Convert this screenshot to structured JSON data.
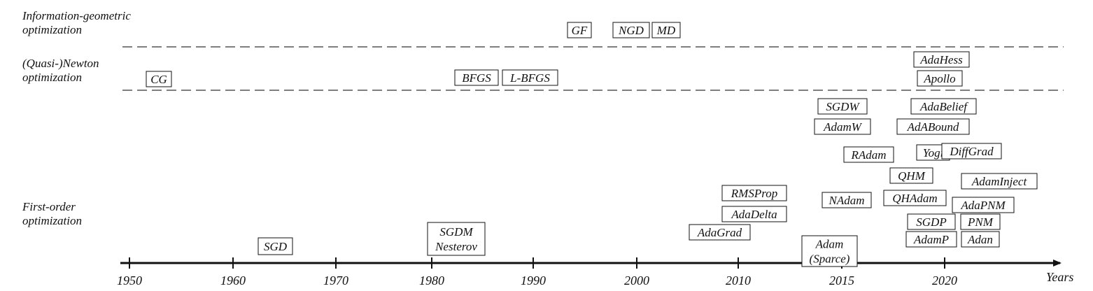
{
  "categories": [
    {
      "id": "info",
      "lines": [
        "Information-geometric",
        "optimization"
      ]
    },
    {
      "id": "newton",
      "lines": [
        "(Quasi-)Newton",
        "optimization"
      ]
    },
    {
      "id": "first",
      "lines": [
        "First-order",
        "optimization"
      ]
    }
  ],
  "axis": {
    "label": "Years",
    "ticks": [
      "1950",
      "1960",
      "1970",
      "1980",
      "1990",
      "2000",
      "2010",
      "2015",
      "2020"
    ]
  },
  "methods": [
    {
      "id": "gf",
      "lines": [
        "GF"
      ]
    },
    {
      "id": "ngd",
      "lines": [
        "NGD"
      ]
    },
    {
      "id": "md",
      "lines": [
        "MD"
      ]
    },
    {
      "id": "cg",
      "lines": [
        "CG"
      ]
    },
    {
      "id": "bfgs",
      "lines": [
        "BFGS"
      ]
    },
    {
      "id": "lbfgs",
      "lines": [
        "L-BFGS"
      ]
    },
    {
      "id": "adahess",
      "lines": [
        "AdaHess"
      ]
    },
    {
      "id": "apollo",
      "lines": [
        "Apollo"
      ]
    },
    {
      "id": "sgd",
      "lines": [
        "SGD"
      ]
    },
    {
      "id": "sgdm",
      "lines": [
        "SGDM",
        "Nesterov"
      ]
    },
    {
      "id": "adagrad",
      "lines": [
        "AdaGrad"
      ]
    },
    {
      "id": "rmsprop",
      "lines": [
        "RMSProp"
      ]
    },
    {
      "id": "adadelta",
      "lines": [
        "AdaDelta"
      ]
    },
    {
      "id": "sgdw",
      "lines": [
        "SGDW"
      ]
    },
    {
      "id": "adamw",
      "lines": [
        "AdamW"
      ]
    },
    {
      "id": "radam",
      "lines": [
        "RAdam"
      ]
    },
    {
      "id": "nadam",
      "lines": [
        "NAdam"
      ]
    },
    {
      "id": "adam",
      "lines": [
        "Adam",
        "(Sparce)"
      ]
    },
    {
      "id": "adabelief",
      "lines": [
        "AdaBelief"
      ]
    },
    {
      "id": "adabound",
      "lines": [
        "AdABound"
      ]
    },
    {
      "id": "yogi",
      "lines": [
        "Yogi"
      ]
    },
    {
      "id": "diffgrad",
      "lines": [
        "DiffGrad"
      ]
    },
    {
      "id": "qhm",
      "lines": [
        "QHM"
      ]
    },
    {
      "id": "adaminject",
      "lines": [
        "AdamInject"
      ]
    },
    {
      "id": "qhadam",
      "lines": [
        "QHAdam"
      ]
    },
    {
      "id": "adapnm",
      "lines": [
        "AdaPNM"
      ]
    },
    {
      "id": "sgdp",
      "lines": [
        "SGDP"
      ]
    },
    {
      "id": "pnm",
      "lines": [
        "PNM"
      ]
    },
    {
      "id": "adamp",
      "lines": [
        "AdamP"
      ]
    },
    {
      "id": "adan",
      "lines": [
        "Adan"
      ]
    }
  ]
}
